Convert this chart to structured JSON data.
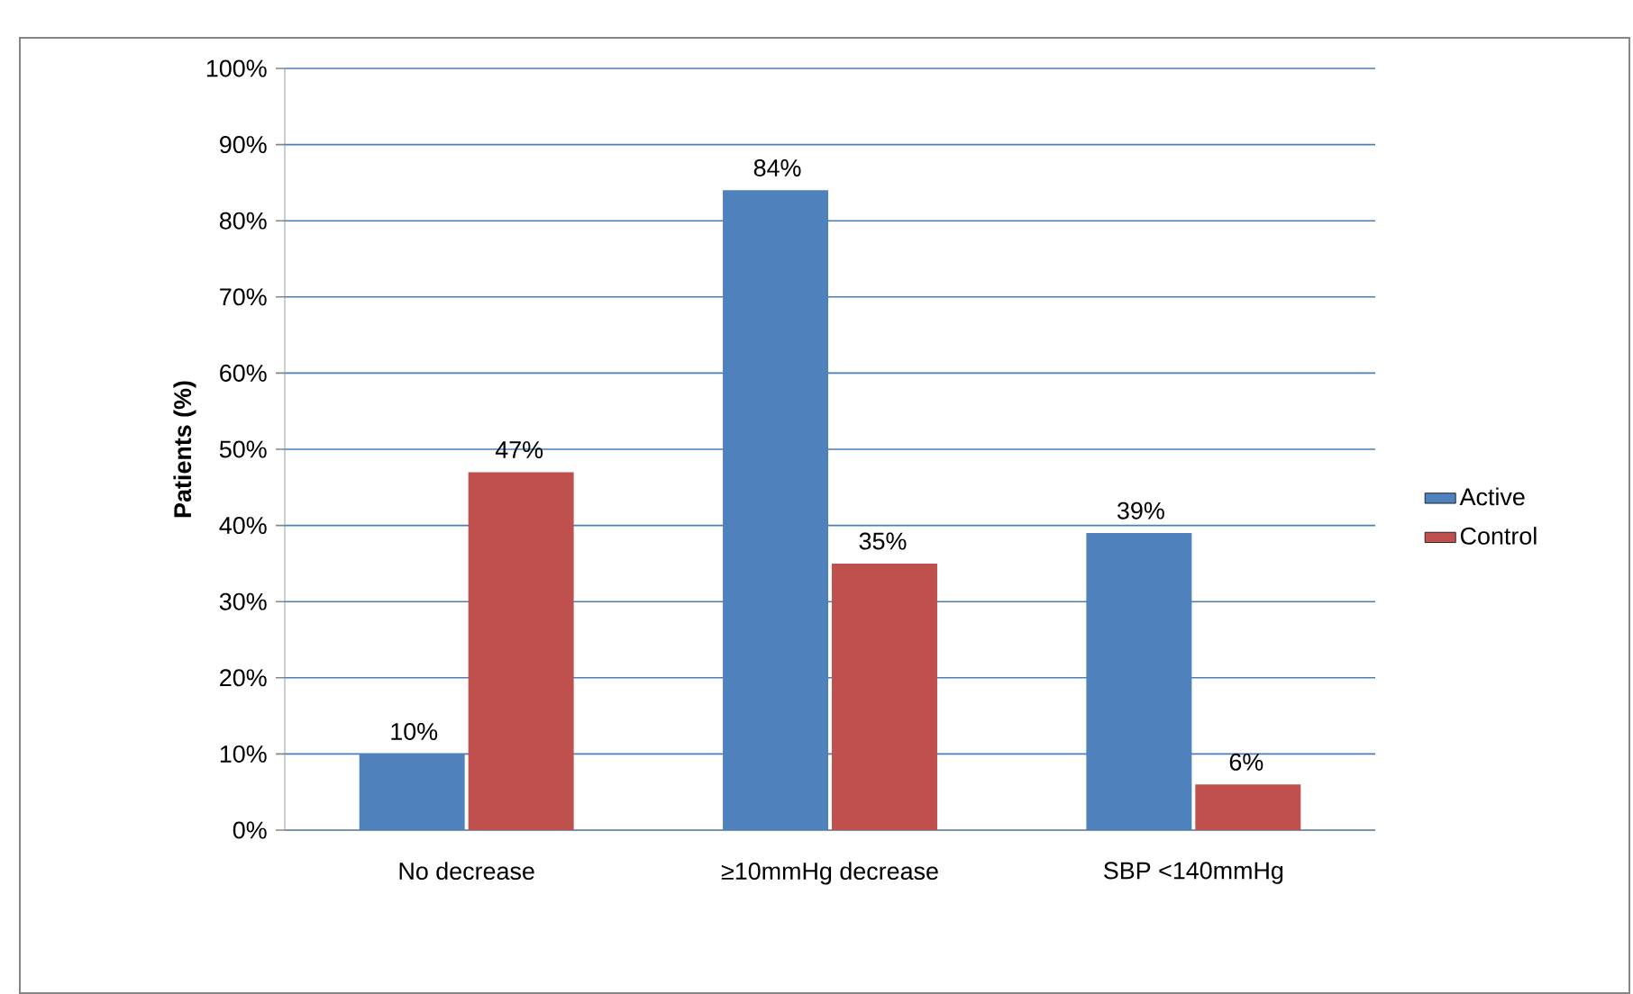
{
  "chart_data": {
    "type": "bar",
    "ylabel": "Patients (%)",
    "categories": [
      "No decrease",
      "≥10mmHg decrease",
      "SBP <140mmHg"
    ],
    "series": [
      {
        "name": "Active",
        "color": "#4f81bd",
        "values": [
          10,
          84,
          39
        ],
        "value_labels": [
          "10%",
          "84%",
          "39%"
        ]
      },
      {
        "name": "Control",
        "color": "#c0504d",
        "values": [
          47,
          35,
          6
        ],
        "value_labels": [
          "47%",
          "35%",
          "6%"
        ]
      }
    ],
    "ylim": [
      0,
      100
    ],
    "yticks": [
      {
        "value": 0,
        "label": "0%"
      },
      {
        "value": 10,
        "label": "10%"
      },
      {
        "value": 20,
        "label": "20%"
      },
      {
        "value": 30,
        "label": "30%"
      },
      {
        "value": 40,
        "label": "40%"
      },
      {
        "value": 50,
        "label": "50%"
      },
      {
        "value": 60,
        "label": "60%"
      },
      {
        "value": 70,
        "label": "70%"
      },
      {
        "value": 80,
        "label": "80%"
      },
      {
        "value": 90,
        "label": "90%"
      },
      {
        "value": 100,
        "label": "100%"
      }
    ],
    "grid": "y",
    "legend": "right"
  }
}
